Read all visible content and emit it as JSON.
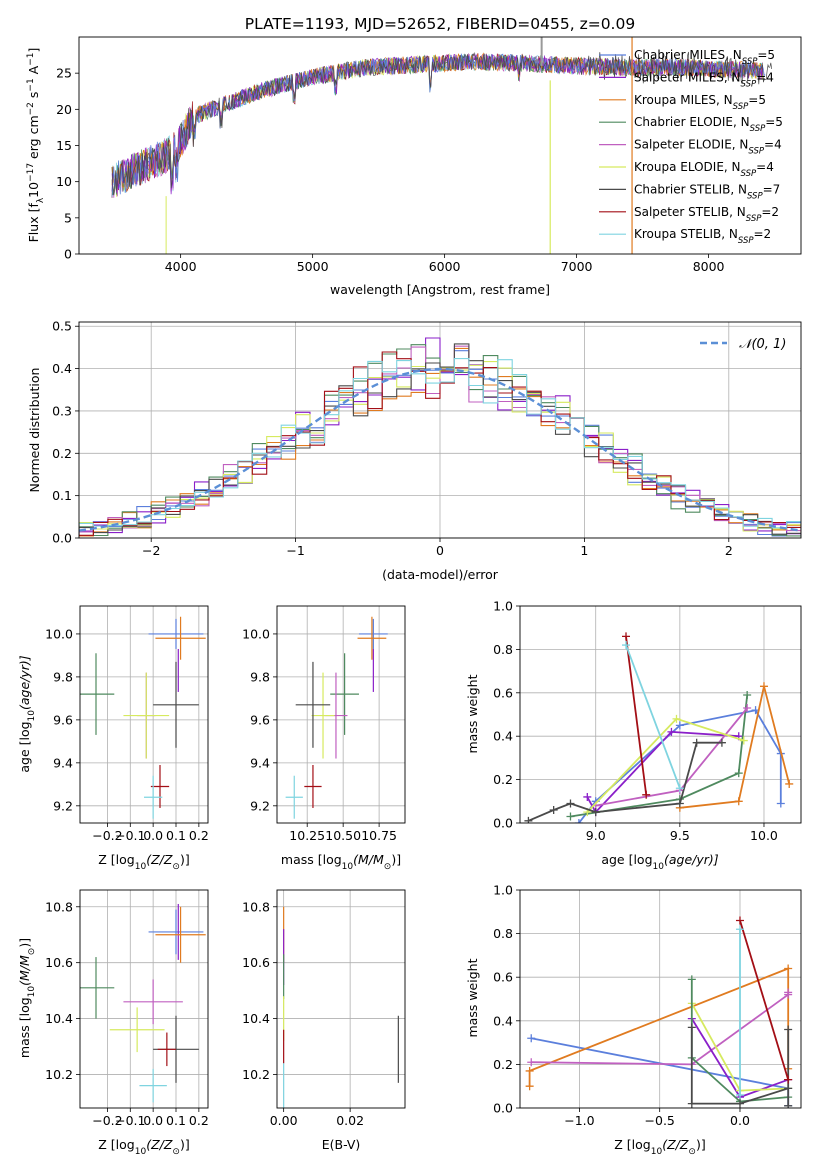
{
  "figure_title": "PLATE=1193, MJD=52652, FIBERID=0455, z=0.09",
  "colors": {
    "CM": "#5b7fdc",
    "SM": "#8a1fc9",
    "KM": "#e07b20",
    "CE": "#4f8a5f",
    "SE": "#c060c0",
    "KE": "#d6ea5f",
    "CS": "#4a4a4a",
    "SS": "#a30f16",
    "KS": "#7fd4e0",
    "gauss": "#5b8fd6",
    "grid": "#b0b0b0"
  },
  "chart_data": [
    {
      "type": "line",
      "name": "spectrum",
      "title": "PLATE=1193, MJD=52652, FIBERID=0455, z=0.09",
      "xlabel": "wavelength [Angstrom, rest frame]",
      "ylabel_parts": [
        "Flux [f",
        "λ",
        "10",
        "−17",
        " erg cm",
        "−2",
        " s",
        "−1",
        " A",
        "−1",
        "]"
      ],
      "xlim": [
        3230,
        8700
      ],
      "ylim": [
        0,
        30
      ],
      "xticks": [
        4000,
        5000,
        6000,
        7000,
        8000
      ],
      "yticks": [
        0,
        5,
        10,
        15,
        20,
        25
      ],
      "grid": false,
      "legend_position": "upper-right",
      "legend": [
        {
          "key": "CM",
          "label_main": "Chabrier MILES, N",
          "label_sub": "SSP",
          "label_end": "=5"
        },
        {
          "key": "SM",
          "label_main": "Salpeter MILES, N",
          "label_sub": "SSP",
          "label_end": "=4"
        },
        {
          "key": "KM",
          "label_main": "Kroupa MILES, N",
          "label_sub": "SSP",
          "label_end": "=5"
        },
        {
          "key": "CE",
          "label_main": "Chabrier ELODIE, N",
          "label_sub": "SSP",
          "label_end": "=5"
        },
        {
          "key": "SE",
          "label_main": "Salpeter ELODIE, N",
          "label_sub": "SSP",
          "label_end": "=4"
        },
        {
          "key": "KE",
          "label_main": "Kroupa ELODIE, N",
          "label_sub": "SSP",
          "label_end": "=4"
        },
        {
          "key": "CS",
          "label_main": "Chabrier STELIB, N",
          "label_sub": "SSP",
          "label_end": "=7"
        },
        {
          "key": "SS",
          "label_main": "Salpeter STELIB, N",
          "label_sub": "SSP",
          "label_end": "=2"
        },
        {
          "key": "KS",
          "label_main": "Kroupa STELIB, N",
          "label_sub": "SSP",
          "label_end": "=2"
        }
      ],
      "continuum_anchors": [
        [
          3480,
          10
        ],
        [
          3700,
          12
        ],
        [
          3880,
          13.5
        ],
        [
          3980,
          15
        ],
        [
          4100,
          19
        ],
        [
          4300,
          20.5
        ],
        [
          4600,
          22.5
        ],
        [
          5000,
          24.5
        ],
        [
          5400,
          25.8
        ],
        [
          5800,
          26.2
        ],
        [
          6200,
          26.6
        ],
        [
          6600,
          26.4
        ],
        [
          7000,
          26
        ],
        [
          7400,
          25.8
        ],
        [
          7800,
          25.8
        ],
        [
          8200,
          25.5
        ],
        [
          8480,
          25.3
        ]
      ]
    },
    {
      "type": "line",
      "name": "residual-histogram",
      "xlabel": "(data-model)/error",
      "ylabel": "Normed distribution",
      "xlim": [
        -2.5,
        2.5
      ],
      "ylim": [
        0,
        0.51
      ],
      "xticks": [
        -2,
        -1,
        0,
        1,
        2
      ],
      "xtick_labels": [
        "−2",
        "−1",
        "0",
        "1",
        "2"
      ],
      "yticks": [
        0.0,
        0.1,
        0.2,
        0.3,
        0.4,
        0.5
      ],
      "ytick_labels": [
        "0.0",
        "0.1",
        "0.2",
        "0.3",
        "0.4",
        "0.5"
      ],
      "grid": true,
      "bin_width": 0.1,
      "gaussian": {
        "label": "𝒩(0, 1)",
        "mean": 0,
        "sigma": 1
      },
      "histogram_series": [
        "CM",
        "SM",
        "KM",
        "CE",
        "SE",
        "KE",
        "CS",
        "SS",
        "KS"
      ],
      "noise_seeds": {
        "CM": 1,
        "SM": 2,
        "KM": 3,
        "CE": 4,
        "SE": 5,
        "KE": 6,
        "CS": 7,
        "SS": 8,
        "KS": 9
      }
    },
    {
      "type": "scatter",
      "name": "age-vs-Z",
      "xlabel_parts": [
        "Z [log",
        "10",
        "(Z/Z",
        "⊙",
        ")]"
      ],
      "ylabel_parts": [
        "age  [log",
        "10",
        "(age/yr)]"
      ],
      "xlim": [
        -0.32,
        0.24
      ],
      "ylim": [
        9.12,
        10.13
      ],
      "xticks": [
        -0.2,
        -0.1,
        0.0,
        0.1,
        0.2
      ],
      "xtick_labels": [
        "−0.2",
        "−0.1",
        "0.0",
        "0.1",
        "0.2"
      ],
      "yticks": [
        9.2,
        9.4,
        9.6,
        9.8,
        10.0
      ],
      "ytick_labels": [
        "9.2",
        "9.4",
        "9.6",
        "9.8",
        "10.0"
      ],
      "grid": true,
      "points": [
        {
          "key": "CM",
          "x": 0.1,
          "xerr": 0.12,
          "y": 10.0,
          "yerr": 0.07
        },
        {
          "key": "SM",
          "x": 0.11,
          "xerr": 0.0,
          "y": 9.83,
          "yerr": 0.1
        },
        {
          "key": "KM",
          "x": 0.12,
          "xerr": 0.11,
          "y": 9.98,
          "yerr": 0.1
        },
        {
          "key": "CE",
          "x": -0.25,
          "xerr": 0.08,
          "y": 9.72,
          "yerr": 0.19
        },
        {
          "key": "SE",
          "x": -0.03,
          "xerr": 0.04,
          "y": 9.62,
          "yerr": 0.2
        },
        {
          "key": "KE",
          "x": -0.03,
          "xerr": 0.1,
          "y": 9.62,
          "yerr": 0.2
        },
        {
          "key": "CS",
          "x": 0.1,
          "xerr": 0.1,
          "y": 9.67,
          "yerr": 0.2
        },
        {
          "key": "SS",
          "x": 0.03,
          "xerr": 0.04,
          "y": 9.29,
          "yerr": 0.1
        },
        {
          "key": "KS",
          "x": 0.0,
          "xerr": 0.04,
          "y": 9.24,
          "yerr": 0.1
        }
      ]
    },
    {
      "type": "scatter",
      "name": "age-vs-mass",
      "xlabel_parts": [
        "mass [log",
        "10",
        "(M/M",
        "⊙",
        ")]"
      ],
      "xlim": [
        10.04,
        10.93
      ],
      "ylim": [
        9.12,
        10.13
      ],
      "xticks": [
        10.25,
        10.5,
        10.75
      ],
      "xtick_labels": [
        "10.25",
        "10.50",
        "10.75"
      ],
      "yticks": [
        9.2,
        9.4,
        9.6,
        9.8,
        10.0
      ],
      "ytick_labels": [
        "9.2",
        "9.4",
        "9.6",
        "9.8",
        "10.0"
      ],
      "grid": true,
      "points": [
        {
          "key": "CM",
          "x": 10.71,
          "xerr": 0.1,
          "y": 10.0,
          "yerr": 0.07
        },
        {
          "key": "SM",
          "x": 10.71,
          "xerr": 0.0,
          "y": 9.83,
          "yerr": 0.1
        },
        {
          "key": "KM",
          "x": 10.7,
          "xerr": 0.1,
          "y": 9.98,
          "yerr": 0.1
        },
        {
          "key": "CE",
          "x": 10.51,
          "xerr": 0.1,
          "y": 9.72,
          "yerr": 0.19
        },
        {
          "key": "SE",
          "x": 10.45,
          "xerr": 0.08,
          "y": 9.62,
          "yerr": 0.2
        },
        {
          "key": "KE",
          "x": 10.36,
          "xerr": 0.08,
          "y": 9.62,
          "yerr": 0.2
        },
        {
          "key": "CS",
          "x": 10.29,
          "xerr": 0.12,
          "y": 9.67,
          "yerr": 0.2
        },
        {
          "key": "SS",
          "x": 10.29,
          "xerr": 0.06,
          "y": 9.29,
          "yerr": 0.1
        },
        {
          "key": "KS",
          "x": 10.16,
          "xerr": 0.06,
          "y": 9.24,
          "yerr": 0.1
        }
      ]
    },
    {
      "type": "line",
      "name": "mass-weight-vs-age",
      "xlabel_parts": [
        "age  [log",
        "10",
        "(age/yr)]"
      ],
      "ylabel": "mass weight",
      "xlim": [
        8.55,
        10.22
      ],
      "ylim": [
        0,
        1
      ],
      "xticks": [
        9.0,
        9.5,
        10.0
      ],
      "xtick_labels": [
        "9.0",
        "9.5",
        "10.0"
      ],
      "yticks": [
        0.0,
        0.2,
        0.4,
        0.6,
        0.8,
        1.0
      ],
      "ytick_labels": [
        "0.0",
        "0.2",
        "0.4",
        "0.6",
        "0.8",
        "1.0"
      ],
      "grid": true,
      "series": [
        {
          "key": "CM",
          "points": [
            [
              8.9,
              0.0
            ],
            [
              9.0,
              0.1
            ],
            [
              9.5,
              0.45
            ],
            [
              9.95,
              0.52
            ],
            [
              10.1,
              0.32
            ],
            [
              10.1,
              0.09
            ]
          ]
        },
        {
          "key": "SM",
          "points": [
            [
              8.95,
              0.12
            ],
            [
              9.0,
              0.05
            ],
            [
              9.45,
              0.42
            ],
            [
              9.85,
              0.4
            ]
          ]
        },
        {
          "key": "KM",
          "points": [
            [
              9.5,
              0.07
            ],
            [
              9.85,
              0.1
            ],
            [
              10.0,
              0.63
            ],
            [
              10.15,
              0.18
            ]
          ]
        },
        {
          "key": "CE",
          "points": [
            [
              8.85,
              0.03
            ],
            [
              9.5,
              0.11
            ],
            [
              9.85,
              0.23
            ],
            [
              9.9,
              0.59
            ]
          ]
        },
        {
          "key": "SE",
          "points": [
            [
              9.0,
              0.08
            ],
            [
              9.5,
              0.15
            ],
            [
              9.9,
              0.53
            ]
          ]
        },
        {
          "key": "KE",
          "points": [
            [
              8.95,
              0.05
            ],
            [
              9.48,
              0.48
            ],
            [
              9.88,
              0.38
            ]
          ]
        },
        {
          "key": "CS",
          "points": [
            [
              8.6,
              0.01
            ],
            [
              8.75,
              0.06
            ],
            [
              8.85,
              0.09
            ],
            [
              9.0,
              0.05
            ],
            [
              9.5,
              0.09
            ],
            [
              9.6,
              0.37
            ],
            [
              9.75,
              0.37
            ]
          ]
        },
        {
          "key": "SS",
          "points": [
            [
              9.18,
              0.86
            ],
            [
              9.3,
              0.13
            ]
          ]
        },
        {
          "key": "KS",
          "points": [
            [
              9.18,
              0.82
            ],
            [
              9.5,
              0.16
            ]
          ]
        }
      ]
    },
    {
      "type": "scatter",
      "name": "mass-vs-Z",
      "xlabel_parts": [
        "Z [log",
        "10",
        "(Z/Z",
        "⊙",
        ")]"
      ],
      "ylabel_parts": [
        "mass [log",
        "10",
        "(M/M",
        "⊙",
        ")]"
      ],
      "xlim": [
        -0.32,
        0.24
      ],
      "ylim": [
        10.08,
        10.86
      ],
      "xticks": [
        -0.2,
        -0.1,
        0.0,
        0.1,
        0.2
      ],
      "xtick_labels": [
        "−0.2",
        "−0.1",
        "0.0",
        "0.1",
        "0.2"
      ],
      "yticks": [
        10.2,
        10.4,
        10.6,
        10.8
      ],
      "ytick_labels": [
        "10.2",
        "10.4",
        "10.6",
        "10.8"
      ],
      "grid": true,
      "points": [
        {
          "key": "CM",
          "x": 0.1,
          "xerr": 0.12,
          "y": 10.71,
          "yerr": 0.08
        },
        {
          "key": "SM",
          "x": 0.11,
          "xerr": 0.0,
          "y": 10.71,
          "yerr": 0.1
        },
        {
          "key": "KM",
          "x": 0.12,
          "xerr": 0.11,
          "y": 10.7,
          "yerr": 0.1
        },
        {
          "key": "CE",
          "x": -0.25,
          "xerr": 0.08,
          "y": 10.51,
          "yerr": 0.11
        },
        {
          "key": "SE",
          "x": 0.0,
          "xerr": 0.13,
          "y": 10.46,
          "yerr": 0.08
        },
        {
          "key": "KE",
          "x": -0.07,
          "xerr": 0.12,
          "y": 10.36,
          "yerr": 0.08
        },
        {
          "key": "CS",
          "x": 0.1,
          "xerr": 0.1,
          "y": 10.29,
          "yerr": 0.12
        },
        {
          "key": "SS",
          "x": 0.06,
          "xerr": 0.04,
          "y": 10.29,
          "yerr": 0.06
        },
        {
          "key": "KS",
          "x": 0.0,
          "xerr": 0.06,
          "y": 10.16,
          "yerr": 0.06
        }
      ]
    },
    {
      "type": "scatter",
      "name": "mass-vs-EBV",
      "xlabel": "E(B-V)",
      "xlim": [
        -0.002,
        0.0365
      ],
      "ylim": [
        10.08,
        10.86
      ],
      "xticks": [
        0.0,
        0.02
      ],
      "xtick_labels": [
        "0.00",
        "0.02"
      ],
      "yticks": [
        10.2,
        10.4,
        10.6,
        10.8
      ],
      "ytick_labels": [
        "10.2",
        "10.4",
        "10.6",
        "10.8"
      ],
      "grid": true,
      "points": [
        {
          "key": "KM",
          "x": 0.0,
          "xerr": 0,
          "y": 10.7,
          "yerr": 0.1
        },
        {
          "key": "SM",
          "x": 0.0,
          "xerr": 0,
          "y": 10.62,
          "yerr": 0.1
        },
        {
          "key": "CE",
          "x": 0.0,
          "xerr": 0,
          "y": 10.55,
          "yerr": 0.08
        },
        {
          "key": "KE",
          "x": 0.0,
          "xerr": 0,
          "y": 10.4,
          "yerr": 0.08
        },
        {
          "key": "SS",
          "x": 0.0,
          "xerr": 0,
          "y": 10.3,
          "yerr": 0.06
        },
        {
          "key": "KS",
          "x": 0.0,
          "xerr": 0,
          "y": 10.16,
          "yerr": 0.08
        },
        {
          "key": "CS",
          "x": 0.0345,
          "xerr": 0,
          "y": 10.29,
          "yerr": 0.12
        }
      ]
    },
    {
      "type": "line",
      "name": "mass-weight-vs-Z",
      "xlabel_parts": [
        "Z [log",
        "10",
        "(Z/Z",
        "⊙",
        ")]"
      ],
      "ylabel": "mass weight",
      "xlim": [
        -1.37,
        0.38
      ],
      "ylim": [
        0,
        1
      ],
      "xticks": [
        -1.0,
        -0.5,
        0.0
      ],
      "xtick_labels": [
        "−1.0",
        "−0.5",
        "0.0"
      ],
      "yticks": [
        0.0,
        0.2,
        0.4,
        0.6,
        0.8,
        1.0
      ],
      "ytick_labels": [
        "0.0",
        "0.2",
        "0.4",
        "0.6",
        "0.8",
        "1.0"
      ],
      "grid": true,
      "series": [
        {
          "key": "CM",
          "points": [
            [
              -1.3,
              0.32
            ],
            [
              0.3,
              0.09
            ],
            [
              0.3,
              0.01
            ]
          ]
        },
        {
          "key": "KM",
          "points": [
            [
              -1.31,
              0.1
            ],
            [
              -1.31,
              0.17
            ],
            [
              0.3,
              0.64
            ],
            [
              0.3,
              0.18
            ]
          ]
        },
        {
          "key": "SE",
          "points": [
            [
              -1.3,
              0.21
            ],
            [
              -0.3,
              0.2
            ],
            [
              0.3,
              0.52
            ],
            [
              0.3,
              0.53
            ]
          ]
        },
        {
          "key": "SM",
          "points": [
            [
              -0.3,
              0.41
            ],
            [
              0.0,
              0.05
            ],
            [
              0.3,
              0.13
            ]
          ]
        },
        {
          "key": "KE",
          "points": [
            [
              -0.3,
              0.48
            ],
            [
              0.0,
              0.08
            ],
            [
              0.3,
              0.09
            ]
          ]
        },
        {
          "key": "CE",
          "points": [
            [
              -0.3,
              0.59
            ],
            [
              -0.3,
              0.23
            ],
            [
              0.0,
              0.03
            ],
            [
              0.3,
              0.05
            ]
          ]
        },
        {
          "key": "CS",
          "points": [
            [
              -0.3,
              0.37
            ],
            [
              -0.3,
              0.02
            ],
            [
              0.0,
              0.02
            ],
            [
              0.3,
              0.09
            ],
            [
              0.3,
              0.36
            ],
            [
              0.3,
              0.01
            ]
          ]
        },
        {
          "key": "SS",
          "points": [
            [
              0.0,
              0.86
            ],
            [
              0.3,
              0.13
            ]
          ]
        },
        {
          "key": "KS",
          "points": [
            [
              0.0,
              0.82
            ],
            [
              0.0,
              0.06
            ]
          ]
        }
      ]
    }
  ]
}
